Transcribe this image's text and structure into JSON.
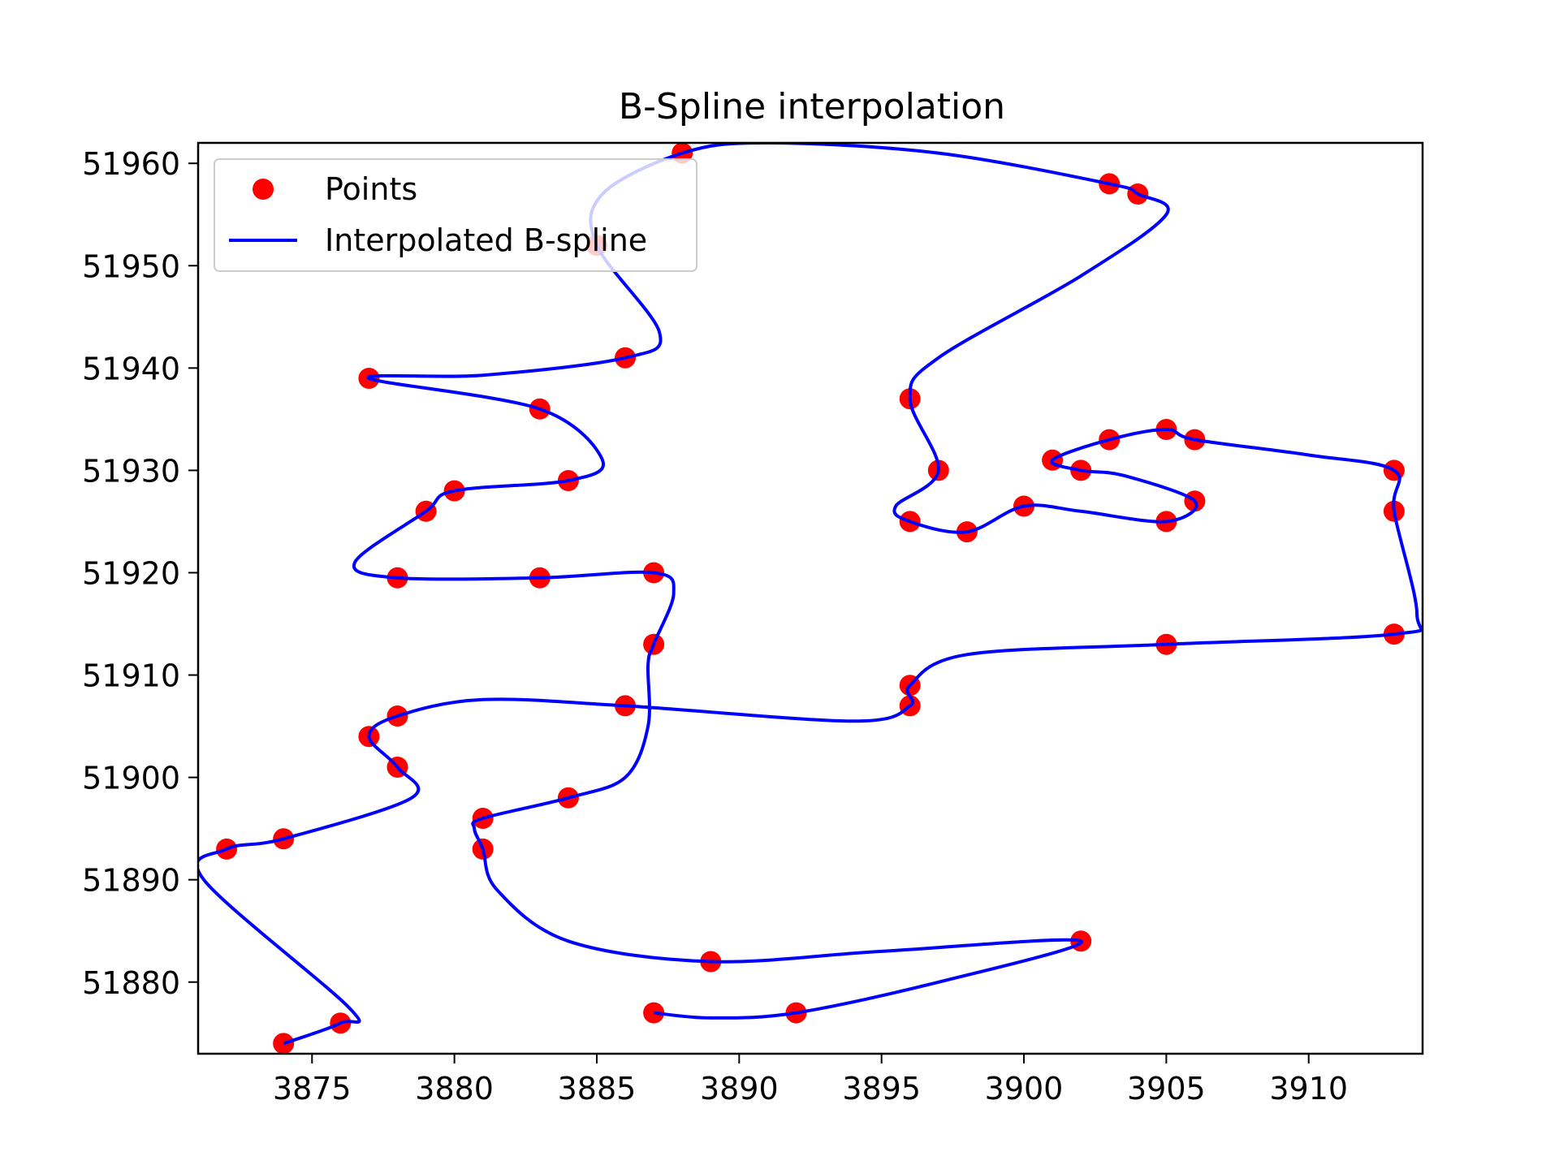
{
  "chart_data": {
    "type": "scatter",
    "title": "B-Spline interpolation",
    "xlabel": "",
    "ylabel": "",
    "xlim": [
      3871,
      3914
    ],
    "ylim": [
      51873,
      51962
    ],
    "xticks": [
      3875,
      3880,
      3885,
      3890,
      3895,
      3900,
      3905,
      3910
    ],
    "yticks": [
      51880,
      51890,
      51900,
      51910,
      51920,
      51930,
      51940,
      51950,
      51960
    ],
    "grid": false,
    "legend_position": "upper left",
    "colors": {
      "points": "#ff0000",
      "spline": "#0000ff"
    },
    "series": [
      {
        "name": "Points",
        "kind": "scatter",
        "points": [
          [
            3887,
            51877
          ],
          [
            3892,
            51877
          ],
          [
            3902,
            51884
          ],
          [
            3889,
            51882
          ],
          [
            3881,
            51893
          ],
          [
            3881,
            51896
          ],
          [
            3884,
            51898
          ],
          [
            3887,
            51913
          ],
          [
            3887,
            51920
          ],
          [
            3883,
            51919.5
          ],
          [
            3878,
            51919.5
          ],
          [
            3879,
            51926
          ],
          [
            3880,
            51928
          ],
          [
            3884,
            51929
          ],
          [
            3883,
            51936
          ],
          [
            3877,
            51939
          ],
          [
            3886,
            51941
          ],
          [
            3885,
            51952
          ],
          [
            3888,
            51961
          ],
          [
            3903,
            51958
          ],
          [
            3904,
            51957
          ],
          [
            3896,
            51937
          ],
          [
            3897,
            51930
          ],
          [
            3896,
            51925
          ],
          [
            3898,
            51924
          ],
          [
            3900,
            51926.5
          ],
          [
            3905,
            51925
          ],
          [
            3906,
            51927
          ],
          [
            3902,
            51930
          ],
          [
            3901,
            51931
          ],
          [
            3903,
            51933
          ],
          [
            3905,
            51934
          ],
          [
            3906,
            51933
          ],
          [
            3913,
            51930
          ],
          [
            3913,
            51926
          ],
          [
            3913,
            51914
          ],
          [
            3905,
            51913
          ],
          [
            3896,
            51909
          ],
          [
            3896,
            51907
          ],
          [
            3886,
            51907
          ],
          [
            3878,
            51906
          ],
          [
            3877,
            51904
          ],
          [
            3878,
            51901
          ],
          [
            3874,
            51894
          ],
          [
            3872,
            51893
          ],
          [
            3876,
            51876
          ],
          [
            3874,
            51874
          ]
        ]
      },
      {
        "name": "Interpolated B-spline",
        "kind": "line",
        "points": [
          [
            3887,
            51877
          ],
          [
            3889,
            51876.5
          ],
          [
            3892,
            51877
          ],
          [
            3897,
            51880
          ],
          [
            3902,
            51884
          ],
          [
            3895,
            51883
          ],
          [
            3889,
            51882
          ],
          [
            3884,
            51884
          ],
          [
            3881.5,
            51889
          ],
          [
            3881,
            51893
          ],
          [
            3880.7,
            51895
          ],
          [
            3881,
            51896
          ],
          [
            3884,
            51898
          ],
          [
            3886,
            51900
          ],
          [
            3886.8,
            51905
          ],
          [
            3886.8,
            51911
          ],
          [
            3887,
            51913
          ],
          [
            3887.7,
            51918
          ],
          [
            3887,
            51920
          ],
          [
            3883,
            51919.5
          ],
          [
            3878,
            51919.5
          ],
          [
            3876.5,
            51921
          ],
          [
            3879,
            51926
          ],
          [
            3880,
            51928
          ],
          [
            3884,
            51929
          ],
          [
            3885.2,
            51931
          ],
          [
            3883,
            51936
          ],
          [
            3877,
            51939
          ],
          [
            3881,
            51939.3
          ],
          [
            3886,
            51941
          ],
          [
            3887.2,
            51943.5
          ],
          [
            3885,
            51952
          ],
          [
            3885.2,
            51957
          ],
          [
            3888,
            51961
          ],
          [
            3891,
            51962
          ],
          [
            3897,
            51961
          ],
          [
            3903,
            51958
          ],
          [
            3904,
            51957
          ],
          [
            3905,
            51955
          ],
          [
            3902,
            51949
          ],
          [
            3897,
            51941
          ],
          [
            3896,
            51937
          ],
          [
            3897,
            51930
          ],
          [
            3895.5,
            51926.5
          ],
          [
            3896,
            51925
          ],
          [
            3898,
            51924
          ],
          [
            3900,
            51926.5
          ],
          [
            3902,
            51926
          ],
          [
            3905,
            51925
          ],
          [
            3906,
            51927
          ],
          [
            3903.5,
            51929.5
          ],
          [
            3902,
            51930
          ],
          [
            3901,
            51931
          ],
          [
            3903,
            51933
          ],
          [
            3905,
            51934
          ],
          [
            3906,
            51933
          ],
          [
            3910,
            51931.5
          ],
          [
            3913,
            51930
          ],
          [
            3913,
            51926
          ],
          [
            3913.8,
            51916
          ],
          [
            3913,
            51914
          ],
          [
            3905,
            51913
          ],
          [
            3898,
            51912
          ],
          [
            3896,
            51909
          ],
          [
            3896,
            51907
          ],
          [
            3894,
            51905.5
          ],
          [
            3886,
            51907
          ],
          [
            3881,
            51907.6
          ],
          [
            3878,
            51906
          ],
          [
            3877,
            51904
          ],
          [
            3878,
            51901
          ],
          [
            3878.5,
            51898
          ],
          [
            3874,
            51894
          ],
          [
            3872,
            51893
          ],
          [
            3871.2,
            51890
          ],
          [
            3876.3,
            51877.5
          ],
          [
            3876,
            51876
          ],
          [
            3874,
            51874
          ]
        ]
      }
    ]
  }
}
